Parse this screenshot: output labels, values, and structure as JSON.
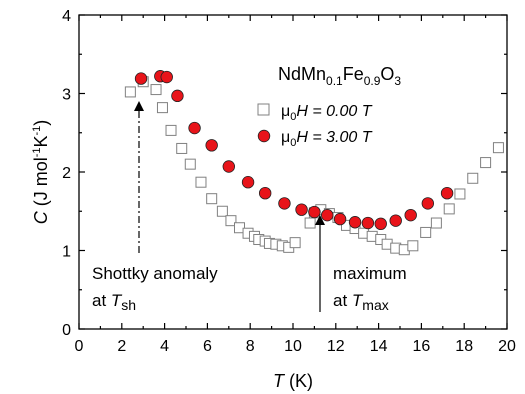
{
  "chart_data": {
    "type": "scatter",
    "xlabel": {
      "italic": "T",
      "rest": " (K)"
    },
    "ylabel": {
      "italic": "C",
      "rest": " (J mol",
      "sup1": "-1",
      "mid": "K",
      "sup2": "-1",
      "end": ")"
    },
    "xlim": [
      0,
      20
    ],
    "ylim": [
      0,
      4
    ],
    "x_ticks": [
      "0",
      "2",
      "4",
      "6",
      "8",
      "10",
      "12",
      "14",
      "16",
      "18",
      "20"
    ],
    "y_ticks": [
      "0",
      "1",
      "2",
      "3",
      "4"
    ],
    "compound": {
      "a": "NdMn",
      "s1": "0.1",
      "b": "Fe",
      "s2": "0.9",
      "c": "O",
      "s3": "3"
    },
    "series": [
      {
        "name_prefix": "μ",
        "name_sub": "0",
        "name_rest": "H = 0.00 T",
        "marker": "open-square",
        "color": "#808080",
        "x": [
          2.4,
          3.0,
          3.6,
          3.9,
          4.3,
          4.8,
          5.2,
          5.7,
          6.2,
          6.7,
          7.1,
          7.5,
          7.9,
          8.2,
          8.4,
          8.7,
          8.9,
          9.2,
          9.5,
          9.8,
          10.1,
          10.8,
          11.0,
          11.3,
          11.7,
          12.1,
          12.5,
          12.9,
          13.3,
          13.7,
          14.1,
          14.4,
          14.8,
          15.2,
          15.6,
          16.2,
          16.7,
          17.3,
          17.8,
          18.4,
          19.0,
          19.6
        ],
        "y": [
          3.02,
          3.15,
          3.05,
          2.82,
          2.53,
          2.3,
          2.1,
          1.87,
          1.66,
          1.5,
          1.38,
          1.29,
          1.22,
          1.18,
          1.14,
          1.12,
          1.09,
          1.08,
          1.06,
          1.04,
          1.1,
          1.35,
          1.48,
          1.52,
          1.47,
          1.42,
          1.32,
          1.28,
          1.22,
          1.18,
          1.14,
          1.08,
          1.03,
          1.01,
          1.06,
          1.23,
          1.35,
          1.53,
          1.72,
          1.92,
          2.12,
          2.31
        ]
      },
      {
        "name_prefix": "μ",
        "name_sub": "0",
        "name_rest": "H = 3.00 T",
        "marker": "filled-circle",
        "color": "#e8141a",
        "x": [
          2.9,
          3.8,
          4.1,
          4.6,
          5.4,
          6.2,
          7.0,
          7.9,
          8.7,
          9.6,
          10.4,
          11.0,
          11.6,
          12.2,
          12.9,
          13.5,
          14.1,
          14.8,
          15.5,
          16.3,
          17.2
        ],
        "y": [
          3.19,
          3.22,
          3.21,
          2.97,
          2.56,
          2.34,
          2.07,
          1.87,
          1.73,
          1.6,
          1.52,
          1.49,
          1.45,
          1.4,
          1.36,
          1.35,
          1.34,
          1.38,
          1.45,
          1.6,
          1.73
        ]
      }
    ],
    "annotations": [
      {
        "line1": "Shottky anomaly",
        "line2_prefix": "at ",
        "line2_italic": "T",
        "line2_sub": "sh"
      },
      {
        "line1": "maximum",
        "line2_prefix": "at ",
        "line2_italic": "T",
        "line2_sub": "max"
      }
    ],
    "grid": false
  }
}
